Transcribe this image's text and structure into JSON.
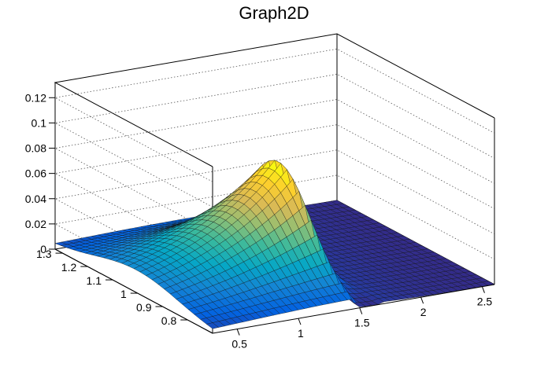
{
  "chart_data": {
    "type": "surface",
    "title": "Graph2D",
    "xlabel": "",
    "ylabel": "",
    "zlabel": "",
    "x_range": [
      0.3,
      2.6
    ],
    "y_range": [
      0.7,
      1.33
    ],
    "z_range": [
      0,
      0.132
    ],
    "x_ticks": [
      "0.5",
      "1",
      "1.5",
      "2",
      "2.5"
    ],
    "y_ticks": [
      "0.8",
      "0.9",
      "1",
      "1.1",
      "1.2",
      "1.3"
    ],
    "z_ticks": [
      "0",
      "0.02",
      "0.04",
      "0.06",
      "0.08",
      "0.1",
      "0.12"
    ],
    "grid": true,
    "colormap": [
      "#352a87",
      "#0363e1",
      "#1485d4",
      "#06a7c6",
      "#38b99e",
      "#92bf73",
      "#d9ba56",
      "#fcce2e",
      "#f9fb0e"
    ],
    "peak": {
      "x": 1.45,
      "y": 1.0,
      "z": 0.083
    }
  }
}
